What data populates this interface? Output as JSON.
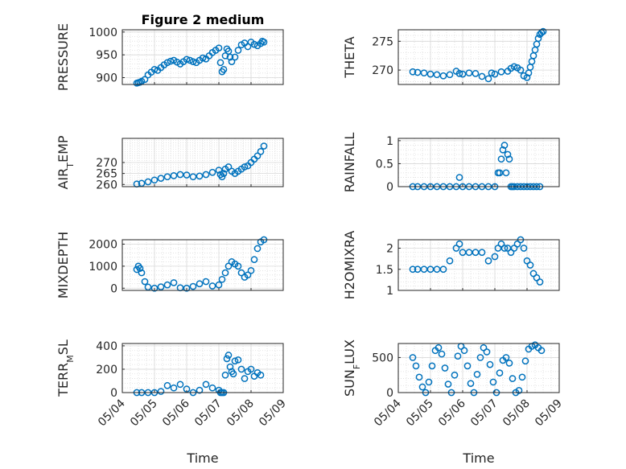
{
  "figure": {
    "title": "Figure 2 medium",
    "xlabel": "Time"
  },
  "chart_data": [
    {
      "type": "scatter",
      "ylabel": "PRESSURE",
      "ylim": [
        885,
        1005
      ],
      "yticks": [
        "900",
        "950",
        "1000"
      ],
      "x": [
        4.45,
        4.5,
        4.55,
        4.6,
        4.7,
        4.8,
        4.9,
        5.0,
        5.1,
        5.2,
        5.3,
        5.4,
        5.5,
        5.6,
        5.7,
        5.8,
        5.9,
        6.0,
        6.1,
        6.2,
        6.3,
        6.4,
        6.5,
        6.6,
        6.7,
        6.8,
        6.9,
        7.0,
        7.05,
        7.1,
        7.15,
        7.2,
        7.25,
        7.3,
        7.35,
        7.4,
        7.5,
        7.6,
        7.7,
        7.8,
        7.9,
        8.0,
        8.1,
        8.2,
        8.3,
        8.35,
        8.4
      ],
      "y": [
        888,
        889,
        890,
        892,
        896,
        906,
        912,
        918,
        916,
        922,
        928,
        933,
        936,
        938,
        934,
        930,
        935,
        940,
        938,
        935,
        933,
        938,
        943,
        941,
        948,
        955,
        960,
        965,
        933,
        913,
        918,
        948,
        963,
        958,
        945,
        935,
        945,
        960,
        972,
        976,
        968,
        978,
        973,
        970,
        975,
        980,
        978
      ]
    },
    {
      "type": "scatter",
      "ylabel": "THETA",
      "ylim": [
        267.5,
        277
      ],
      "yticks": [
        "270",
        "275"
      ],
      "x": [
        4.45,
        4.6,
        4.8,
        5.0,
        5.2,
        5.4,
        5.6,
        5.8,
        5.9,
        6.0,
        6.2,
        6.4,
        6.6,
        6.8,
        6.9,
        7.0,
        7.2,
        7.4,
        7.5,
        7.6,
        7.7,
        7.8,
        7.9,
        8.0,
        8.05,
        8.1,
        8.15,
        8.2,
        8.25,
        8.3,
        8.35,
        8.4,
        8.45,
        8.5
      ],
      "y": [
        269.7,
        269.6,
        269.5,
        269.3,
        269.2,
        269.0,
        269.2,
        269.8,
        269.4,
        269.3,
        269.5,
        269.4,
        268.9,
        268.5,
        269.5,
        269.3,
        269.7,
        269.8,
        270.3,
        270.6,
        270.4,
        270.0,
        269.0,
        268.7,
        269.5,
        270.5,
        271.5,
        272.5,
        273.5,
        274.5,
        275.5,
        276.2,
        276.5,
        276.7
      ]
    },
    {
      "type": "scatter",
      "ylabel": "AIR_TEMP",
      "ylim": [
        259,
        281
      ],
      "yticks": [
        "260",
        "265",
        "270"
      ],
      "x": [
        4.45,
        4.6,
        4.8,
        5.0,
        5.2,
        5.4,
        5.6,
        5.8,
        6.0,
        6.2,
        6.4,
        6.6,
        6.8,
        7.0,
        7.05,
        7.1,
        7.15,
        7.2,
        7.3,
        7.4,
        7.5,
        7.6,
        7.7,
        7.8,
        7.9,
        8.0,
        8.1,
        8.2,
        8.3,
        8.4
      ],
      "y": [
        260.2,
        260.5,
        261.2,
        262.0,
        262.8,
        263.5,
        264.0,
        264.5,
        264.3,
        263.5,
        263.8,
        264.5,
        265.5,
        266.5,
        264.5,
        263.5,
        265.0,
        267.0,
        268.0,
        266.0,
        265.0,
        266.0,
        267.0,
        268.0,
        268.5,
        270.0,
        271.5,
        273.0,
        275.0,
        277.5
      ]
    },
    {
      "type": "scatter",
      "ylabel": "RAINFALL",
      "ylim": [
        0,
        1.05
      ],
      "yticks": [
        "0",
        "0.5",
        "1"
      ],
      "x": [
        4.45,
        4.6,
        4.8,
        5.0,
        5.2,
        5.4,
        5.6,
        5.8,
        5.9,
        6.0,
        6.2,
        6.4,
        6.6,
        6.8,
        7.0,
        7.1,
        7.15,
        7.2,
        7.25,
        7.3,
        7.35,
        7.4,
        7.45,
        7.5,
        7.55,
        7.6,
        7.7,
        7.8,
        7.9,
        8.0,
        8.1,
        8.2,
        8.3,
        8.4
      ],
      "y": [
        0,
        0,
        0,
        0,
        0,
        0,
        0,
        0,
        0.2,
        0,
        0,
        0,
        0,
        0,
        0,
        0.3,
        0.3,
        0.6,
        0.8,
        0.9,
        0.3,
        0.7,
        0.6,
        0,
        0,
        0,
        0,
        0,
        0,
        0,
        0,
        0,
        0,
        0
      ]
    },
    {
      "type": "scatter",
      "ylabel": "MIXDEPTH",
      "ylim": [
        -100,
        2200
      ],
      "yticks": [
        "0",
        "1000",
        "2000"
      ],
      "x": [
        4.45,
        4.5,
        4.55,
        4.6,
        4.7,
        4.8,
        5.0,
        5.2,
        5.4,
        5.6,
        5.8,
        6.0,
        6.2,
        6.4,
        6.6,
        6.8,
        7.0,
        7.1,
        7.2,
        7.3,
        7.4,
        7.5,
        7.6,
        7.7,
        7.8,
        7.9,
        8.0,
        8.1,
        8.2,
        8.3,
        8.4
      ],
      "y": [
        850,
        1000,
        900,
        700,
        300,
        50,
        0,
        60,
        150,
        250,
        20,
        0,
        80,
        200,
        300,
        100,
        150,
        400,
        700,
        1000,
        1200,
        1100,
        1000,
        700,
        500,
        600,
        800,
        1300,
        1800,
        2100,
        2200
      ]
    },
    {
      "type": "scatter",
      "ylabel": "H2OMIXRA",
      "ylim": [
        1,
        2.2
      ],
      "yticks": [
        "1",
        "1.5",
        "2"
      ],
      "x": [
        4.45,
        4.6,
        4.8,
        5.0,
        5.2,
        5.4,
        5.6,
        5.8,
        5.9,
        6.0,
        6.2,
        6.4,
        6.6,
        6.8,
        7.0,
        7.1,
        7.2,
        7.3,
        7.4,
        7.5,
        7.6,
        7.7,
        7.8,
        7.9,
        8.0,
        8.1,
        8.2,
        8.3,
        8.4
      ],
      "y": [
        1.5,
        1.5,
        1.5,
        1.5,
        1.5,
        1.5,
        1.7,
        2.0,
        2.1,
        1.9,
        1.9,
        1.9,
        1.9,
        1.7,
        1.8,
        2.0,
        2.1,
        2.0,
        2.0,
        1.9,
        2.0,
        2.1,
        2.2,
        2.0,
        1.7,
        1.6,
        1.4,
        1.3,
        1.2
      ]
    },
    {
      "type": "scatter",
      "ylabel": "TERR_MSL",
      "ylim": [
        0,
        420
      ],
      "yticks": [
        "0",
        "200",
        "400"
      ],
      "x": [
        4.45,
        4.6,
        4.8,
        5.0,
        5.2,
        5.4,
        5.6,
        5.8,
        6.0,
        6.2,
        6.4,
        6.6,
        6.8,
        7.0,
        7.05,
        7.1,
        7.15,
        7.2,
        7.25,
        7.3,
        7.35,
        7.4,
        7.45,
        7.5,
        7.6,
        7.7,
        7.8,
        7.9,
        8.0,
        8.1,
        8.2,
        8.3
      ],
      "y": [
        0,
        0,
        0,
        0,
        10,
        60,
        40,
        70,
        30,
        0,
        20,
        70,
        40,
        20,
        0,
        0,
        0,
        150,
        290,
        320,
        220,
        180,
        160,
        270,
        280,
        200,
        120,
        180,
        200,
        140,
        170,
        150
      ]
    },
    {
      "type": "scatter",
      "ylabel": "SUN_FLUX",
      "ylim": [
        0,
        700
      ],
      "yticks": [
        "0",
        "500"
      ],
      "x": [
        4.45,
        4.55,
        4.65,
        4.75,
        4.85,
        4.95,
        5.05,
        5.15,
        5.25,
        5.35,
        5.45,
        5.55,
        5.65,
        5.75,
        5.85,
        5.95,
        6.05,
        6.15,
        6.25,
        6.35,
        6.45,
        6.55,
        6.65,
        6.75,
        6.85,
        6.95,
        7.05,
        7.15,
        7.25,
        7.35,
        7.45,
        7.55,
        7.65,
        7.75,
        7.85,
        7.95,
        8.05,
        8.15,
        8.25,
        8.35,
        8.45
      ],
      "y": [
        500,
        380,
        220,
        80,
        0,
        150,
        380,
        600,
        640,
        550,
        350,
        120,
        0,
        250,
        520,
        660,
        600,
        380,
        130,
        0,
        260,
        500,
        640,
        580,
        400,
        150,
        0,
        280,
        460,
        500,
        420,
        200,
        0,
        30,
        220,
        450,
        620,
        660,
        680,
        640,
        600
      ]
    }
  ],
  "colors": {
    "marker": "#0072BD",
    "grid": "#e6e6e6",
    "axis": "#262626"
  },
  "xticks": [
    "05/04",
    "05/05",
    "05/06",
    "05/07",
    "05/08",
    "05/09"
  ],
  "xrange": [
    4,
    9
  ]
}
